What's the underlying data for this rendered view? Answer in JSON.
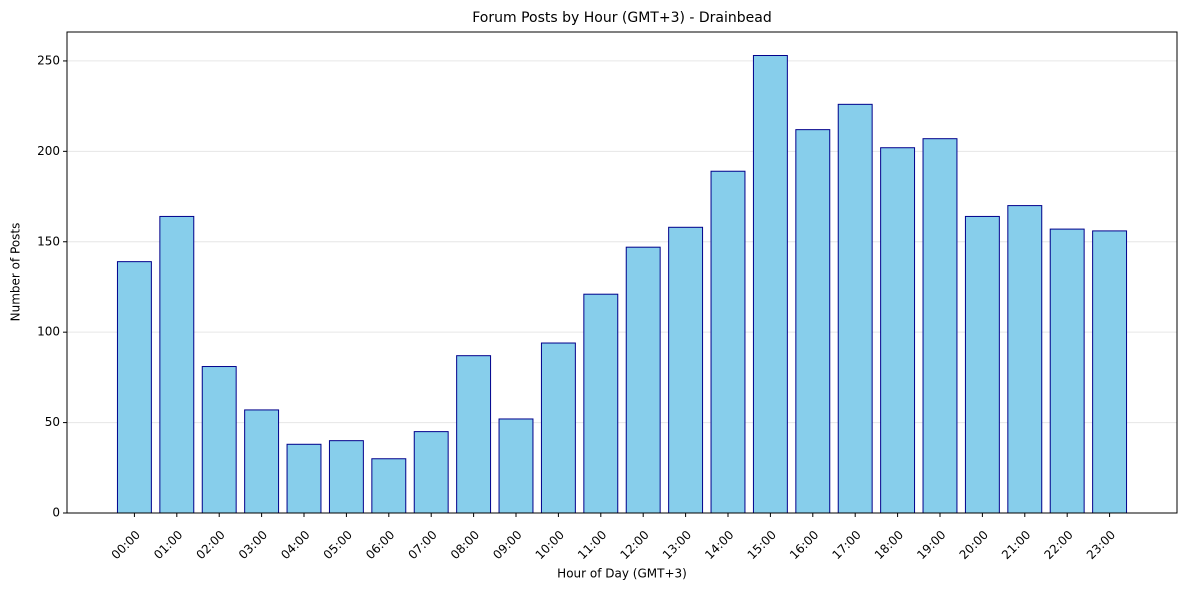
{
  "chart_data": {
    "type": "bar",
    "title": "Forum Posts by Hour (GMT+3) - Drainbead",
    "x_label": "Hour of Day (GMT+3)",
    "y_label": "Number of Posts",
    "categories": [
      "00:00",
      "01:00",
      "02:00",
      "03:00",
      "04:00",
      "05:00",
      "06:00",
      "07:00",
      "08:00",
      "09:00",
      "10:00",
      "11:00",
      "12:00",
      "13:00",
      "14:00",
      "15:00",
      "16:00",
      "17:00",
      "18:00",
      "19:00",
      "20:00",
      "21:00",
      "22:00",
      "23:00"
    ],
    "values": [
      139,
      164,
      81,
      57,
      38,
      40,
      30,
      45,
      87,
      52,
      94,
      121,
      147,
      158,
      189,
      253,
      212,
      226,
      202,
      207,
      164,
      170,
      157,
      156
    ],
    "color": "#87ceeb",
    "edge_color": "#00008b",
    "ylim": [
      0,
      266
    ],
    "yticks": [
      0,
      50,
      100,
      150,
      200,
      250
    ],
    "grid": true
  }
}
